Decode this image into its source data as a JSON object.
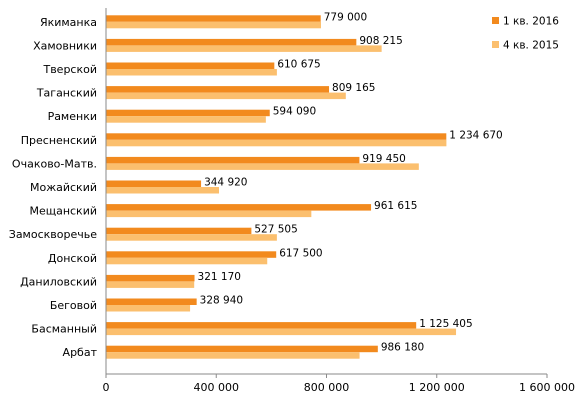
{
  "chart_data": {
    "type": "bar",
    "orientation": "horizontal",
    "categories": [
      "Якиманка",
      "Хамовники",
      "Тверской",
      "Таганский",
      "Раменки",
      "Пресненский",
      "Очаково-Матв.",
      "Можайский",
      "Мещанский",
      "Замоскворечье",
      "Донской",
      "Даниловский",
      "Беговой",
      "Басманный",
      "Арбат"
    ],
    "series": [
      {
        "name": "1 кв. 2016",
        "color": "#f28a1e",
        "values": [
          779000,
          908215,
          610675,
          809165,
          594090,
          1234670,
          919450,
          344920,
          961615,
          527505,
          617500,
          321170,
          328940,
          1125405,
          986180
        ],
        "labels": [
          "779 000",
          "908 215",
          "610 675",
          "809 165",
          "594 090",
          "1 234 670",
          "919 450",
          "344 920",
          "961 615",
          "527 505",
          "617 500",
          "321 170",
          "328 940",
          "1 125 405",
          "986 180"
        ]
      },
      {
        "name": "4 кв. 2015",
        "color": "#fbbf6e",
        "values": [
          780000,
          1000000,
          620000,
          870000,
          580000,
          1235000,
          1135000,
          410000,
          745000,
          620000,
          585000,
          320000,
          305000,
          1270000,
          920000
        ]
      }
    ],
    "xlim": [
      0,
      1600000
    ],
    "x_ticks": [
      {
        "value": 0,
        "label": "0"
      },
      {
        "value": 400000,
        "label": "400 000"
      },
      {
        "value": 800000,
        "label": "800 000"
      },
      {
        "value": 1200000,
        "label": "1 200 000"
      },
      {
        "value": 1600000,
        "label": "1 600 000"
      }
    ],
    "grid": false,
    "legend_position": "top-right",
    "title": "",
    "xlabel": "",
    "ylabel": ""
  }
}
